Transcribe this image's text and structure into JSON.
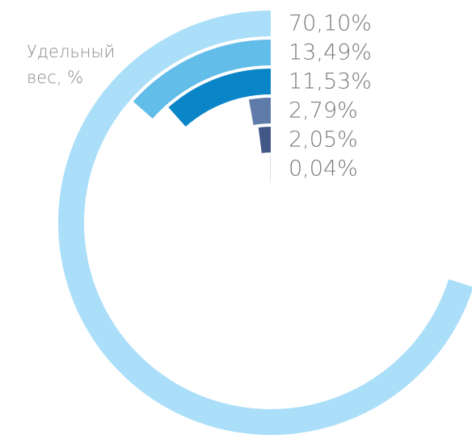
{
  "chart_data": {
    "type": "radial-bar",
    "title": "Удельный вес, %",
    "values": [
      70.1,
      13.49,
      11.53,
      2.79,
      2.05,
      0.04
    ],
    "value_labels": [
      "70,10%",
      "13,49%",
      "11,53%",
      "2,79%",
      "2,05%",
      "0,04%"
    ],
    "colors": [
      "#abdff9",
      "#62bde8",
      "#0a86c8",
      "#5f7ba9",
      "#415886",
      "#2f3a60"
    ],
    "ylim": [
      0,
      100
    ]
  }
}
